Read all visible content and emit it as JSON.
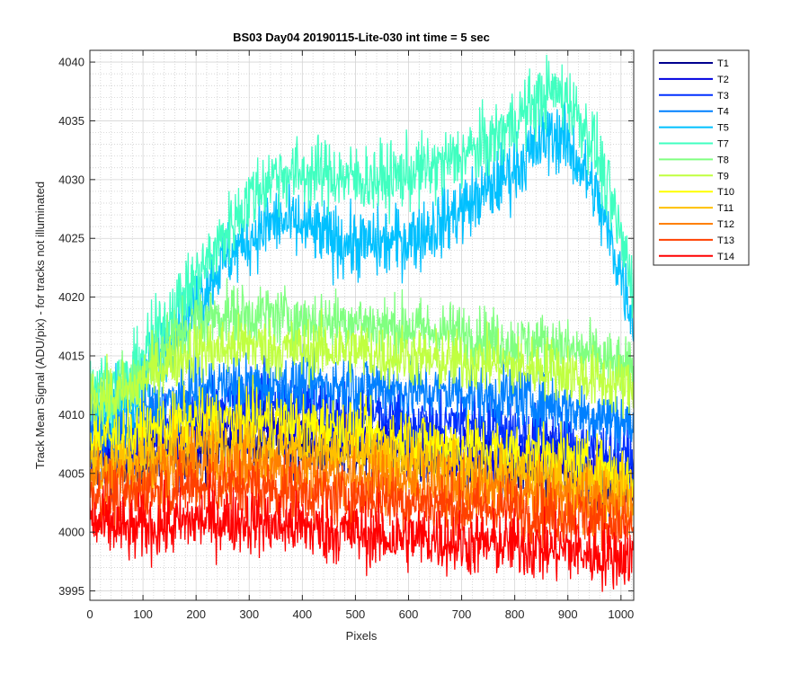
{
  "chart_data": {
    "type": "line",
    "title": "BS03 Day04 20190115-Lite-030 int time = 5 sec",
    "xlabel": "Pixels",
    "ylabel": "Track Mean Signal (ADU/pix) - for tracks not illuminated",
    "xlim": [
      0,
      1024
    ],
    "ylim": [
      3994.2,
      4041
    ],
    "xticks": [
      0,
      100,
      200,
      300,
      400,
      500,
      600,
      700,
      800,
      900,
      1000
    ],
    "yticks": [
      3995,
      4000,
      4005,
      4010,
      4015,
      4020,
      4025,
      4030,
      4035,
      4040
    ],
    "grid": "major and minor (dotted)",
    "legend_position": "outside-right",
    "x": [
      0,
      20,
      50,
      80,
      100,
      150,
      200,
      250,
      300,
      350,
      400,
      450,
      500,
      550,
      600,
      650,
      700,
      750,
      800,
      850,
      870,
      900,
      950,
      1000,
      1024
    ],
    "series": [
      {
        "name": "T1",
        "color": "#00008f",
        "noise": 1.3,
        "values": [
          4006.5,
          4006.0,
          4006.0,
          4006.0,
          4006.5,
          4006.5,
          4007.0,
          4007.5,
          4008.0,
          4008.0,
          4007.5,
          4007.0,
          4007.0,
          4007.5,
          4006.5,
          4006.0,
          4005.8,
          4006.0,
          4005.5,
          4005.5,
          4005.5,
          4005.0,
          4004.5,
          4004.0,
          4004.0
        ]
      },
      {
        "name": "T2",
        "color": "#0000e0",
        "noise": 1.3,
        "values": [
          4007.0,
          4007.0,
          4007.0,
          4007.0,
          4007.5,
          4008.0,
          4008.5,
          4009.0,
          4009.2,
          4009.3,
          4009.0,
          4008.5,
          4008.0,
          4008.0,
          4007.5,
          4007.0,
          4007.0,
          4007.0,
          4006.5,
          4006.5,
          4006.5,
          4006.0,
          4005.5,
          4005.0,
          4004.5
        ]
      },
      {
        "name": "T3",
        "color": "#0030ff",
        "noise": 1.3,
        "values": [
          4008.0,
          4008.0,
          4008.0,
          4008.0,
          4009.0,
          4009.5,
          4010.5,
          4011.0,
          4011.5,
          4011.5,
          4011.0,
          4010.5,
          4010.0,
          4010.0,
          4009.5,
          4009.0,
          4009.5,
          4009.0,
          4008.5,
          4008.0,
          4008.0,
          4007.5,
          4007.0,
          4006.5,
          4006.0
        ]
      },
      {
        "name": "T4",
        "color": "#0080ff",
        "noise": 1.3,
        "values": [
          4009.0,
          4009.0,
          4009.0,
          4009.0,
          4010.0,
          4011.0,
          4012.0,
          4012.5,
          4012.5,
          4012.5,
          4012.5,
          4012.5,
          4012.5,
          4012.5,
          4012.0,
          4012.0,
          4012.0,
          4011.5,
          4011.5,
          4011.0,
          4011.0,
          4010.5,
          4010.0,
          4009.5,
          4009.0
        ]
      },
      {
        "name": "T5",
        "color": "#00c0ff",
        "noise": 1.5,
        "values": [
          4011.0,
          4011.0,
          4011.0,
          4011.5,
          4013.0,
          4016.5,
          4019.5,
          4023.0,
          4025.0,
          4026.5,
          4026.0,
          4025.0,
          4024.5,
          4024.5,
          4025.0,
          4026.0,
          4027.5,
          4029.0,
          4031.0,
          4033.0,
          4034.0,
          4033.0,
          4029.0,
          4022.0,
          4018.0
        ]
      },
      {
        "name": "T7",
        "color": "#40ffc0",
        "noise": 1.5,
        "values": [
          4012.5,
          4012.5,
          4012.5,
          4013.0,
          4015.0,
          4018.5,
          4021.5,
          4025.0,
          4028.5,
          4030.5,
          4030.5,
          4030.5,
          4030.0,
          4030.0,
          4030.5,
          4031.0,
          4032.0,
          4033.0,
          4035.0,
          4037.0,
          4037.5,
          4037.0,
          4033.0,
          4025.0,
          4021.0
        ]
      },
      {
        "name": "T8",
        "color": "#80ff80",
        "noise": 1.3,
        "values": [
          4012.0,
          4012.0,
          4012.0,
          4012.5,
          4014.0,
          4016.5,
          4018.0,
          4018.5,
          4018.5,
          4018.5,
          4018.0,
          4018.0,
          4018.0,
          4017.5,
          4017.5,
          4017.0,
          4017.0,
          4016.5,
          4016.0,
          4016.0,
          4016.0,
          4015.5,
          4015.0,
          4014.0,
          4013.5
        ]
      },
      {
        "name": "T9",
        "color": "#c0ff40",
        "noise": 1.3,
        "values": [
          4011.5,
          4011.5,
          4011.5,
          4012.0,
          4013.0,
          4014.5,
          4015.5,
          4015.5,
          4016.0,
          4015.5,
          4015.5,
          4015.5,
          4015.5,
          4015.0,
          4015.0,
          4014.5,
          4014.5,
          4014.5,
          4014.0,
          4014.0,
          4014.0,
          4013.5,
          4013.0,
          4012.5,
          4012.0
        ]
      },
      {
        "name": "T10",
        "color": "#ffff00",
        "noise": 1.3,
        "values": [
          4008.0,
          4008.0,
          4008.0,
          4008.0,
          4008.5,
          4009.0,
          4009.5,
          4009.5,
          4009.5,
          4009.5,
          4009.0,
          4009.0,
          4008.5,
          4008.0,
          4008.0,
          4007.5,
          4007.5,
          4007.0,
          4007.0,
          4006.5,
          4006.5,
          4006.0,
          4005.5,
          4005.0,
          4004.5
        ]
      },
      {
        "name": "T11",
        "color": "#ffc000",
        "noise": 1.3,
        "values": [
          4006.0,
          4006.0,
          4006.0,
          4006.0,
          4006.5,
          4007.0,
          4007.5,
          4007.5,
          4007.5,
          4007.0,
          4007.0,
          4006.5,
          4006.5,
          4006.0,
          4006.0,
          4005.5,
          4005.5,
          4005.0,
          4005.0,
          4004.5,
          4004.5,
          4004.0,
          4004.0,
          4003.5,
          4003.0
        ]
      },
      {
        "name": "T12",
        "color": "#ff8000",
        "noise": 1.3,
        "values": [
          4005.0,
          4004.5,
          4004.5,
          4004.5,
          4005.0,
          4005.5,
          4005.5,
          4005.5,
          4005.5,
          4005.5,
          4005.0,
          4005.0,
          4004.5,
          4004.5,
          4004.0,
          4004.0,
          4003.5,
          4003.5,
          4003.5,
          4003.0,
          4003.0,
          4003.0,
          4002.5,
          4002.0,
          4002.0
        ]
      },
      {
        "name": "T13",
        "color": "#ff4000",
        "noise": 1.3,
        "values": [
          4003.5,
          4003.0,
          4003.0,
          4003.0,
          4003.5,
          4003.5,
          4004.0,
          4004.0,
          4004.0,
          4003.5,
          4003.5,
          4003.0,
          4003.0,
          4003.0,
          4002.5,
          4002.5,
          4002.0,
          4002.0,
          4002.0,
          4001.5,
          4001.5,
          4001.5,
          4001.0,
          4000.5,
          4000.5
        ]
      },
      {
        "name": "T14",
        "color": "#ff0000",
        "noise": 1.4,
        "values": [
          4001.0,
          4000.5,
          4000.5,
          4000.0,
          4000.5,
          4000.5,
          4001.0,
          4001.0,
          4001.0,
          4000.5,
          4000.5,
          4000.0,
          4000.0,
          3999.5,
          3999.5,
          3999.5,
          3999.0,
          3999.0,
          3999.0,
          3998.5,
          3998.5,
          3998.5,
          3998.0,
          3998.0,
          3998.0
        ]
      }
    ]
  }
}
